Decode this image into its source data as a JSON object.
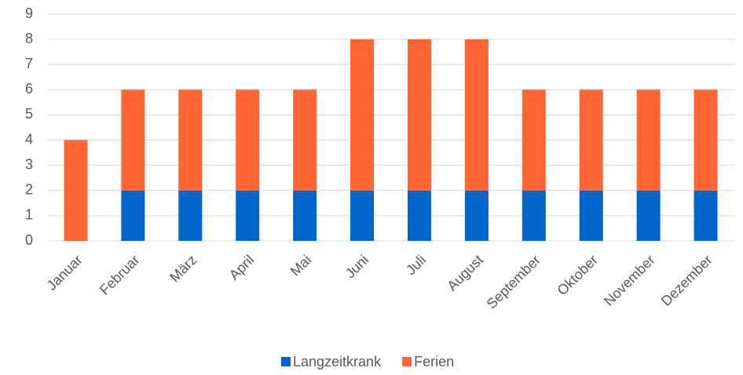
{
  "chart_data": {
    "type": "stacked_bar",
    "categories": [
      "Januar",
      "Februar",
      "März",
      "April",
      "Mai",
      "Juni",
      "Juli",
      "August",
      "September",
      "Oktober",
      "November",
      "Dezember"
    ],
    "series": [
      {
        "name": "Langzeitkrank",
        "color": "#0066cc",
        "values": [
          0,
          2,
          2,
          2,
          2,
          2,
          2,
          2,
          2,
          2,
          2,
          2
        ]
      },
      {
        "name": "Ferien",
        "color": "#ff6633",
        "values": [
          4,
          4,
          4,
          4,
          4,
          6,
          6,
          6,
          4,
          4,
          4,
          4
        ]
      }
    ],
    "ylim": [
      0,
      9
    ],
    "yticks": [
      0,
      1,
      2,
      3,
      4,
      5,
      6,
      7,
      8,
      9
    ],
    "grid": true,
    "legend": "bottom"
  }
}
